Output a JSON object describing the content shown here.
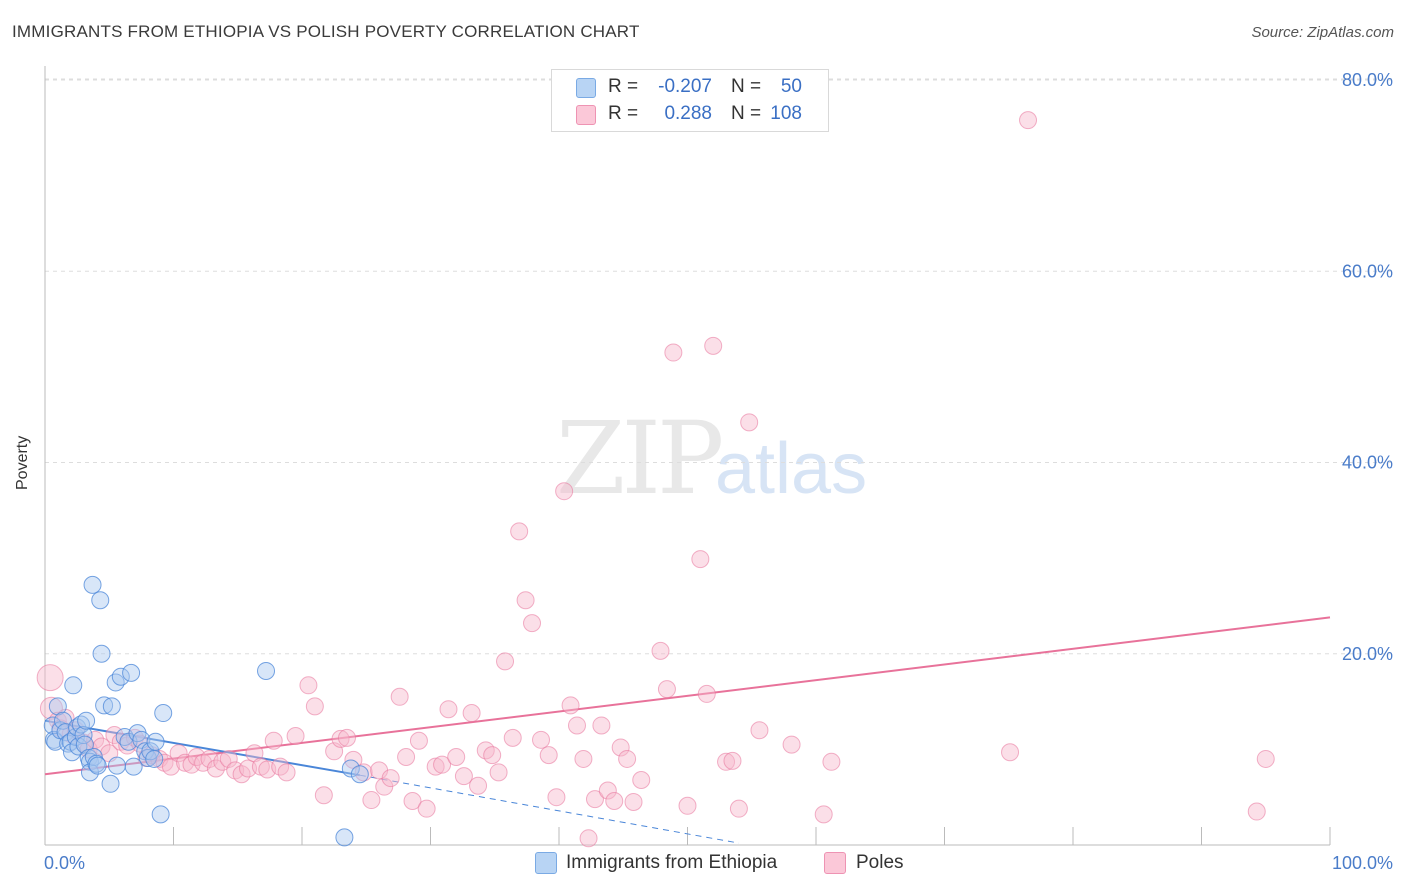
{
  "header": {
    "title": "IMMIGRANTS FROM ETHIOPIA VS POLISH POVERTY CORRELATION CHART",
    "source": "Source: ZipAtlas.com"
  },
  "watermark": {
    "zip": "ZIP",
    "atlas": "atlas"
  },
  "legend_top": {
    "rows": [
      {
        "r_label": "R =",
        "r_value": "-0.207",
        "n_label": "N =",
        "n_value": "50",
        "color": "#a8c8f0"
      },
      {
        "r_label": "R =",
        "r_value": "0.288",
        "n_label": "N =",
        "n_value": "108",
        "color": "#f7b8cc"
      }
    ]
  },
  "legend_bottom": {
    "items": [
      {
        "label": "Immigrants from Ethiopia",
        "color": "#a8c8f0"
      },
      {
        "label": "Poles",
        "color": "#f7b8cc"
      }
    ]
  },
  "chart_data": {
    "type": "scatter",
    "title": "IMMIGRANTS FROM ETHIOPIA VS POLISH POVERTY CORRELATION CHART",
    "xlabel": "",
    "ylabel": "Poverty",
    "xlim": [
      0,
      100
    ],
    "ylim": [
      0,
      80
    ],
    "x_tick_labels": [
      "0.0%",
      "100.0%"
    ],
    "y_ticks": [
      20,
      40,
      60,
      80
    ],
    "y_tick_labels": [
      "20.0%",
      "40.0%",
      "60.0%",
      "80.0%"
    ],
    "grid": true,
    "series": [
      {
        "name": "Immigrants from Ethiopia",
        "color": "#4a86d8",
        "fill": "#a8c8f0",
        "points": [
          [
            0.6,
            12.5
          ],
          [
            0.7,
            11.0
          ],
          [
            0.8,
            10.8
          ],
          [
            1.0,
            14.5
          ],
          [
            1.2,
            12.0
          ],
          [
            1.4,
            13.0
          ],
          [
            1.6,
            11.8
          ],
          [
            1.8,
            10.6
          ],
          [
            2.0,
            10.8
          ],
          [
            2.1,
            9.7
          ],
          [
            2.2,
            16.7
          ],
          [
            2.4,
            11.3
          ],
          [
            2.5,
            12.3
          ],
          [
            2.6,
            10.3
          ],
          [
            2.8,
            12.6
          ],
          [
            3.0,
            11.5
          ],
          [
            3.1,
            10.5
          ],
          [
            3.2,
            13.0
          ],
          [
            3.4,
            9.1
          ],
          [
            3.5,
            8.7
          ],
          [
            3.5,
            7.6
          ],
          [
            3.7,
            27.2
          ],
          [
            3.8,
            9.2
          ],
          [
            4.0,
            8.5
          ],
          [
            4.1,
            8.3
          ],
          [
            4.3,
            25.6
          ],
          [
            4.4,
            20.0
          ],
          [
            4.6,
            14.6
          ],
          [
            5.1,
            6.4
          ],
          [
            5.2,
            14.5
          ],
          [
            5.5,
            17.0
          ],
          [
            5.6,
            8.3
          ],
          [
            5.9,
            17.6
          ],
          [
            6.2,
            11.3
          ],
          [
            6.5,
            10.8
          ],
          [
            6.7,
            18.0
          ],
          [
            6.9,
            8.2
          ],
          [
            7.2,
            11.7
          ],
          [
            7.5,
            11.0
          ],
          [
            7.8,
            9.8
          ],
          [
            8.0,
            9.1
          ],
          [
            8.2,
            9.8
          ],
          [
            8.5,
            9.0
          ],
          [
            8.6,
            10.8
          ],
          [
            9.0,
            3.2
          ],
          [
            9.2,
            13.8
          ],
          [
            17.2,
            18.2
          ],
          [
            23.3,
            0.8
          ],
          [
            23.8,
            8.0
          ],
          [
            24.5,
            7.4
          ]
        ],
        "trend": {
          "x_start": 0,
          "y_start": 13.0,
          "x_end_solid": 24.5,
          "y_end_solid": 7.3,
          "x_end_dashed": 54,
          "y_end_dashed": 0.2
        }
      },
      {
        "name": "Poles",
        "color": "#e8729a",
        "fill": "#f7b8cc",
        "points": [
          [
            0.4,
            17.5
          ],
          [
            0.5,
            14.3
          ],
          [
            1.0,
            13.0
          ],
          [
            1.2,
            12.2
          ],
          [
            1.6,
            13.3
          ],
          [
            2.0,
            11.6
          ],
          [
            2.4,
            12.0
          ],
          [
            3.0,
            10.7
          ],
          [
            3.4,
            10.0
          ],
          [
            3.9,
            11.0
          ],
          [
            4.4,
            10.3
          ],
          [
            5.0,
            9.6
          ],
          [
            5.4,
            11.5
          ],
          [
            5.9,
            10.8
          ],
          [
            6.4,
            10.4
          ],
          [
            7.0,
            11.2
          ],
          [
            7.4,
            10.6
          ],
          [
            7.9,
            9.1
          ],
          [
            8.3,
            9.4
          ],
          [
            8.9,
            9.0
          ],
          [
            9.3,
            8.6
          ],
          [
            9.8,
            8.2
          ],
          [
            10.4,
            9.6
          ],
          [
            10.9,
            8.6
          ],
          [
            11.4,
            8.4
          ],
          [
            11.8,
            9.2
          ],
          [
            12.3,
            8.6
          ],
          [
            12.8,
            9.0
          ],
          [
            13.3,
            8.0
          ],
          [
            13.8,
            8.7
          ],
          [
            14.3,
            9.0
          ],
          [
            14.8,
            7.8
          ],
          [
            15.3,
            7.4
          ],
          [
            15.8,
            8.0
          ],
          [
            16.3,
            9.6
          ],
          [
            16.8,
            8.2
          ],
          [
            17.3,
            7.9
          ],
          [
            17.8,
            10.9
          ],
          [
            18.3,
            8.2
          ],
          [
            18.8,
            7.6
          ],
          [
            19.5,
            11.4
          ],
          [
            20.5,
            16.7
          ],
          [
            21.0,
            14.5
          ],
          [
            21.7,
            5.2
          ],
          [
            22.5,
            9.8
          ],
          [
            23.0,
            11.1
          ],
          [
            23.5,
            11.2
          ],
          [
            24.0,
            8.9
          ],
          [
            24.8,
            7.6
          ],
          [
            25.4,
            4.7
          ],
          [
            26.0,
            7.8
          ],
          [
            26.4,
            6.1
          ],
          [
            26.9,
            7.0
          ],
          [
            27.6,
            15.5
          ],
          [
            28.1,
            9.2
          ],
          [
            28.6,
            4.6
          ],
          [
            29.1,
            10.9
          ],
          [
            29.7,
            3.8
          ],
          [
            30.4,
            8.2
          ],
          [
            30.9,
            8.4
          ],
          [
            31.4,
            14.2
          ],
          [
            32.0,
            9.2
          ],
          [
            32.6,
            7.2
          ],
          [
            33.2,
            13.8
          ],
          [
            33.7,
            6.2
          ],
          [
            34.3,
            9.9
          ],
          [
            34.8,
            9.4
          ],
          [
            35.3,
            7.6
          ],
          [
            35.8,
            19.2
          ],
          [
            36.4,
            11.2
          ],
          [
            36.9,
            32.8
          ],
          [
            37.4,
            25.6
          ],
          [
            37.9,
            23.2
          ],
          [
            38.6,
            11.0
          ],
          [
            39.2,
            9.4
          ],
          [
            39.8,
            5.0
          ],
          [
            40.4,
            37.0
          ],
          [
            40.9,
            14.6
          ],
          [
            41.4,
            12.5
          ],
          [
            41.9,
            9.0
          ],
          [
            42.3,
            0.7
          ],
          [
            42.8,
            4.8
          ],
          [
            43.3,
            12.5
          ],
          [
            43.8,
            5.7
          ],
          [
            44.3,
            4.6
          ],
          [
            44.8,
            10.2
          ],
          [
            45.3,
            9.0
          ],
          [
            45.8,
            4.5
          ],
          [
            46.4,
            6.8
          ],
          [
            47.9,
            20.3
          ],
          [
            48.4,
            16.3
          ],
          [
            48.9,
            51.5
          ],
          [
            50.0,
            4.1
          ],
          [
            51.0,
            29.9
          ],
          [
            51.5,
            15.8
          ],
          [
            52.0,
            52.2
          ],
          [
            53.0,
            8.7
          ],
          [
            53.5,
            8.8
          ],
          [
            54.0,
            3.8
          ],
          [
            54.8,
            44.2
          ],
          [
            55.6,
            12.0
          ],
          [
            58.1,
            10.5
          ],
          [
            60.6,
            3.2
          ],
          [
            61.2,
            8.7
          ],
          [
            75.1,
            9.7
          ],
          [
            76.5,
            75.8
          ],
          [
            94.3,
            3.5
          ],
          [
            95.0,
            9.0
          ]
        ],
        "trend": {
          "x_start": 0,
          "y_start": 7.4,
          "x_end": 100,
          "y_end": 23.8
        }
      }
    ]
  }
}
